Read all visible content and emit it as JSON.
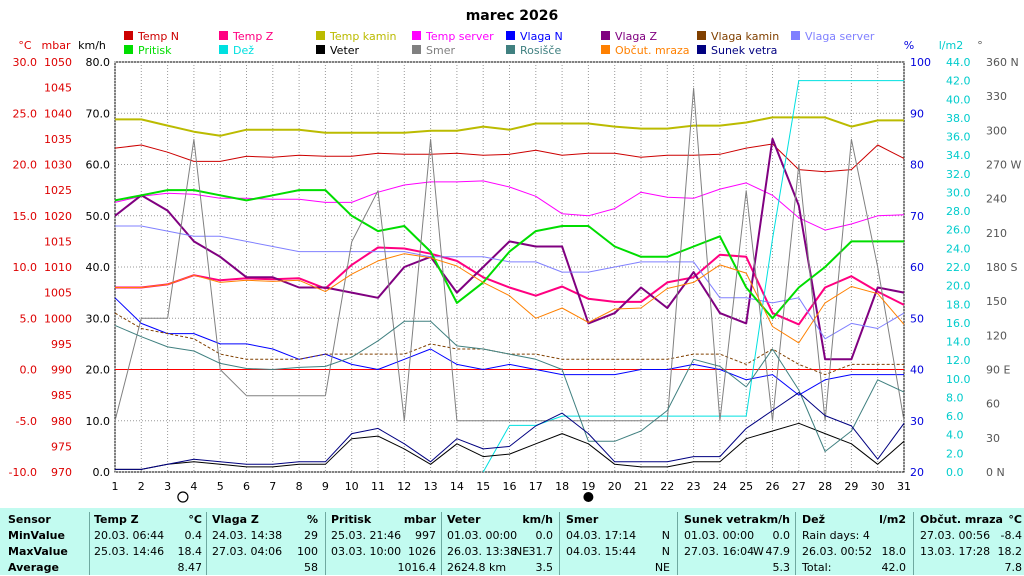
{
  "chart_data": {
    "type": "line",
    "title": "marec 2026",
    "x": [
      1,
      2,
      3,
      4,
      5,
      6,
      7,
      8,
      9,
      10,
      11,
      12,
      13,
      14,
      15,
      16,
      17,
      18,
      19,
      20,
      21,
      22,
      23,
      24,
      25,
      26,
      27,
      28,
      29,
      30,
      31
    ],
    "xlabel": "",
    "axes": {
      "temp": {
        "unit": "°C",
        "ylim": [
          -10,
          30
        ],
        "ticks": [
          "-10.0",
          "-5.0",
          "0.0",
          "5.0",
          "10.0",
          "15.0",
          "20.0",
          "25.0",
          "30.0"
        ],
        "color": "#dd0000"
      },
      "pressure": {
        "unit": "mbar",
        "ylim": [
          970,
          1050
        ],
        "ticks": [
          "970",
          "975",
          "980",
          "985",
          "990",
          "995",
          "1000",
          "1005",
          "1010",
          "1015",
          "1020",
          "1025",
          "1030",
          "1035",
          "1040",
          "1045",
          "1050"
        ],
        "color": "#dd0000"
      },
      "wind": {
        "unit": "km/h",
        "ylim": [
          0,
          80
        ],
        "ticks": [
          "0.0",
          "10.0",
          "20.0",
          "30.0",
          "40.0",
          "50.0",
          "60.0",
          "70.0",
          "80.0"
        ],
        "color": "#000000"
      },
      "humidity": {
        "unit": "%",
        "ylim": [
          20,
          100
        ],
        "ticks": [
          "20",
          "30",
          "40",
          "50",
          "60",
          "70",
          "80",
          "90",
          "100"
        ],
        "color": "#0000dd"
      },
      "rain": {
        "unit": "l/m2",
        "ylim": [
          0,
          44
        ],
        "ticks": [
          "0.0",
          "2.0",
          "4.0",
          "6.0",
          "8.0",
          "10.0",
          "12.0",
          "14.0",
          "16.0",
          "18.0",
          "20.0",
          "22.0",
          "24.0",
          "26.0",
          "28.0",
          "30.0",
          "32.0",
          "34.0",
          "36.0",
          "38.0",
          "40.0",
          "42.0",
          "44.0"
        ],
        "color": "#00cccc"
      },
      "direction": {
        "unit": "°",
        "ylim": [
          0,
          360
        ],
        "ticks": [
          "0 N",
          "30",
          "60",
          "90 E",
          "120",
          "150",
          "180 S",
          "210",
          "240",
          "270 W",
          "300",
          "330",
          "360 N"
        ],
        "color": "#555555"
      }
    },
    "legend": [
      {
        "name": "Temp N",
        "color": "#cc0000"
      },
      {
        "name": "Temp Z",
        "color": "#ff0080"
      },
      {
        "name": "Temp kamin",
        "color": "#bbbb00"
      },
      {
        "name": "Temp server",
        "color": "#ff00ff"
      },
      {
        "name": "Vlaga N",
        "color": "#0000ff"
      },
      {
        "name": "Vlaga Z",
        "color": "#800080"
      },
      {
        "name": "Vlaga kamin",
        "color": "#804000"
      },
      {
        "name": "Vlaga server",
        "color": "#8080ff"
      },
      {
        "name": "Pritisk",
        "color": "#00dd00"
      },
      {
        "name": "Dež",
        "color": "#00e0e0"
      },
      {
        "name": "Veter",
        "color": "#000000"
      },
      {
        "name": "Smer",
        "color": "#808080"
      },
      {
        "name": "Rosišče",
        "color": "#408080"
      },
      {
        "name": "Občut. mraza",
        "color": "#ff8000"
      },
      {
        "name": "Sunek vetra",
        "color": "#000080"
      }
    ],
    "series": [
      {
        "name": "Temp N",
        "axis": "temp",
        "color": "#cc0000",
        "width": 1,
        "values": [
          21.6,
          21.9,
          21.2,
          20.3,
          20.3,
          20.8,
          20.7,
          20.9,
          20.8,
          20.8,
          21.1,
          21.0,
          21.0,
          21.1,
          20.9,
          21.0,
          21.4,
          20.9,
          21.1,
          21.1,
          20.7,
          20.9,
          20.9,
          21.0,
          21.6,
          22.0,
          19.5,
          19.3,
          19.5,
          21.9,
          20.6
        ]
      },
      {
        "name": "Temp Z",
        "axis": "temp",
        "color": "#ff0080",
        "width": 2,
        "values": [
          8.0,
          8.0,
          8.3,
          9.2,
          8.7,
          8.9,
          8.8,
          8.9,
          7.9,
          10.2,
          11.9,
          11.8,
          11.3,
          10.6,
          9.0,
          8.0,
          7.2,
          8.1,
          6.9,
          6.6,
          6.6,
          8.5,
          9.0,
          11.2,
          11.0,
          5.5,
          4.4,
          8.0,
          9.1,
          7.6,
          6.3
        ]
      },
      {
        "name": "Temp kamin",
        "axis": "temp",
        "color": "#bbbb00",
        "width": 2,
        "values": [
          24.4,
          24.4,
          23.8,
          23.2,
          22.8,
          23.4,
          23.4,
          23.4,
          23.1,
          23.1,
          23.1,
          23.1,
          23.3,
          23.3,
          23.7,
          23.4,
          24.0,
          24.0,
          24.0,
          23.7,
          23.5,
          23.5,
          23.8,
          23.8,
          24.1,
          24.6,
          24.6,
          24.6,
          23.7,
          24.3,
          24.3
        ]
      },
      {
        "name": "Temp server",
        "axis": "temp",
        "color": "#ff00ff",
        "width": 1,
        "values": [
          16.3,
          16.9,
          17.2,
          17.1,
          16.7,
          16.7,
          16.6,
          16.6,
          16.3,
          16.3,
          17.3,
          18.0,
          18.3,
          18.3,
          18.4,
          17.8,
          16.9,
          15.2,
          15.0,
          15.7,
          17.3,
          16.8,
          16.7,
          17.6,
          18.2,
          17.0,
          14.8,
          13.6,
          14.2,
          15.0,
          15.1
        ]
      },
      {
        "name": "Vlaga N",
        "axis": "humidity",
        "color": "#0000ff",
        "width": 1,
        "values": [
          54,
          49,
          47,
          47,
          45,
          45,
          44,
          42,
          43,
          41,
          40,
          42,
          44,
          41,
          40,
          41,
          40,
          39,
          39,
          39,
          40,
          40,
          41,
          40,
          38,
          39,
          35,
          38,
          39,
          39,
          39
        ]
      },
      {
        "name": "Vlaga Z",
        "axis": "humidity",
        "color": "#800080",
        "width": 2,
        "values": [
          70,
          74,
          71,
          65,
          62,
          58,
          58,
          56,
          56,
          55,
          54,
          60,
          62,
          55,
          60,
          65,
          64,
          64,
          49,
          51,
          56,
          52,
          59,
          51,
          49,
          85,
          72,
          42,
          42,
          56,
          55
        ]
      },
      {
        "name": "Vlaga kamin",
        "axis": "humidity",
        "color": "#804000",
        "width": 1,
        "values": [
          51,
          48,
          47,
          46,
          43,
          42,
          42,
          42,
          43,
          43,
          43,
          43,
          45,
          44,
          44,
          43,
          43,
          42,
          42,
          42,
          42,
          42,
          43,
          43,
          41,
          44,
          41,
          39,
          41,
          41,
          41
        ]
      },
      {
        "name": "Vlaga server",
        "axis": "humidity",
        "color": "#8080ff",
        "width": 1,
        "values": [
          68,
          68,
          67,
          66,
          66,
          65,
          64,
          63,
          63,
          63,
          63,
          63,
          62,
          62,
          62,
          61,
          61,
          59,
          59,
          60,
          61,
          61,
          61,
          54,
          54,
          53,
          54,
          46,
          49,
          48,
          51
        ]
      },
      {
        "name": "Pritisk",
        "axis": "pressure",
        "color": "#00dd00",
        "width": 2,
        "values": [
          1023,
          1024,
          1025,
          1025,
          1024,
          1023,
          1024,
          1025,
          1025,
          1020,
          1017,
          1018,
          1013,
          1003,
          1007,
          1013,
          1017,
          1018,
          1018,
          1014,
          1012,
          1012,
          1014,
          1016,
          1006,
          1000,
          1006,
          1010,
          1015,
          1015,
          1015
        ]
      },
      {
        "name": "Dež",
        "axis": "rain",
        "color": "#00e0e0",
        "width": 1,
        "values": [
          null,
          null,
          null,
          null,
          null,
          null,
          null,
          null,
          null,
          null,
          null,
          null,
          null,
          null,
          0.0,
          5.0,
          5.0,
          6.0,
          6.0,
          6.0,
          6.0,
          6.0,
          6.0,
          6.0,
          6.0,
          25.0,
          42.0,
          42.0,
          42.0,
          42.0,
          42.0
        ]
      },
      {
        "name": "Veter",
        "axis": "wind",
        "color": "#000000",
        "width": 1,
        "values": [
          0.5,
          0.5,
          1.5,
          2.0,
          1.5,
          1.0,
          1.0,
          1.5,
          1.5,
          6.5,
          7.0,
          4.5,
          1.5,
          5.5,
          3.0,
          3.5,
          5.5,
          7.5,
          5.5,
          1.5,
          1.0,
          1.0,
          2.0,
          2.0,
          6.5,
          8.0,
          9.5,
          7.5,
          5.5,
          1.5,
          6.0
        ]
      },
      {
        "name": "Smer",
        "axis": "direction",
        "color": "#808080",
        "width": 1,
        "values": [
          45,
          135,
          135,
          292,
          90,
          67,
          67,
          67,
          67,
          202,
          247,
          45,
          292,
          45,
          45,
          45,
          45,
          45,
          45,
          45,
          45,
          45,
          337,
          45,
          247,
          45,
          270,
          45,
          292,
          180,
          45
        ]
      },
      {
        "name": "Rosišče",
        "axis": "temp",
        "color": "#408080",
        "width": 1,
        "values": [
          4.3,
          3.2,
          2.2,
          1.8,
          0.6,
          0.1,
          0.0,
          0.2,
          0.3,
          1.2,
          2.8,
          4.7,
          4.7,
          2.3,
          2.0,
          1.5,
          1.0,
          0.0,
          -7.0,
          -7.0,
          -6.0,
          -4.0,
          1.0,
          0.3,
          -1.7,
          2.0,
          -2.0,
          -8.0,
          -6.0,
          -1.0,
          -2.2
        ]
      },
      {
        "name": "Občut. mraza",
        "axis": "temp",
        "color": "#ff8000",
        "width": 1,
        "values": [
          8.0,
          8.0,
          8.3,
          9.2,
          8.5,
          8.7,
          8.6,
          8.7,
          7.6,
          9.3,
          10.6,
          11.3,
          10.9,
          10.1,
          8.5,
          7.2,
          5.0,
          6.0,
          4.6,
          5.9,
          6.0,
          7.9,
          8.5,
          10.2,
          9.4,
          4.2,
          2.6,
          6.5,
          8.1,
          7.4,
          4.4
        ]
      },
      {
        "name": "Sunek vetra",
        "axis": "wind",
        "color": "#000080",
        "width": 1,
        "values": [
          0.5,
          0.5,
          1.5,
          2.5,
          2.0,
          1.5,
          1.5,
          2.0,
          2.0,
          7.5,
          8.5,
          5.5,
          2.0,
          6.5,
          4.5,
          5.0,
          9.0,
          11.5,
          7.5,
          2.0,
          2.0,
          2.0,
          3.0,
          3.0,
          8.5,
          12.0,
          15.5,
          11.0,
          9.0,
          2.5,
          9.5
        ]
      }
    ]
  },
  "markers": {
    "empty_circle_day": 4,
    "filled_circle_day": 19
  },
  "stats": {
    "row_labels": [
      "Sensor",
      "MinValue",
      "MaxValue",
      "Average"
    ],
    "tempz": {
      "name": "Temp Z",
      "unit": "°C",
      "min_time": "20.03.  06:44",
      "min": "0.4",
      "max_time": "25.03.  14:46",
      "max": "18.4",
      "avg": "8.47"
    },
    "vlagaz": {
      "name": "Vlaga Z",
      "unit": "%",
      "min_time": "24.03.  14:38",
      "min": "29",
      "max_time": "27.03.  04:06",
      "max": "100",
      "avg": "58"
    },
    "pritisk": {
      "name": "Pritisk",
      "unit": "mbar",
      "min_time": "25.03.  21:46",
      "min": "997",
      "max_time": "03.03.  10:00",
      "max": "1026",
      "avg": "1016.4"
    },
    "veter": {
      "name": "Veter",
      "unit": "km/h",
      "min_time": "01.03.  00:00",
      "min": "0.0",
      "max_time": "26.03.  13:38",
      "max_dir": "NE",
      "max": "31.7",
      "avg_label": "2624.8 km",
      "avg": "3.5"
    },
    "smer": {
      "name": "Smer",
      "min_time": "04.03.  17:14",
      "min": "N",
      "max_time": "04.03.  15:44",
      "max": "N",
      "avg": "NE"
    },
    "sunek": {
      "name": "Sunek vetra",
      "unit": "km/h",
      "min_time": "01.03.  00:00",
      "min": "0.0",
      "max_time": "27.03.  16:04",
      "max_dir": "W",
      "max": "47.9",
      "avg": "5.3"
    },
    "dez": {
      "name": "Dež",
      "unit": "l/m2",
      "min_label": "Rain days: 4",
      "max_time": "26.03.  00:52",
      "max": "18.0",
      "avg_label": "Total:",
      "avg": "42.0"
    },
    "obcut": {
      "name": "Občut. mraza",
      "unit": "°C",
      "min_time": "27.03.  00:56",
      "min": "-8.4",
      "max_time": "13.03.  17:28",
      "max": "18.2",
      "avg": "7.8"
    }
  }
}
